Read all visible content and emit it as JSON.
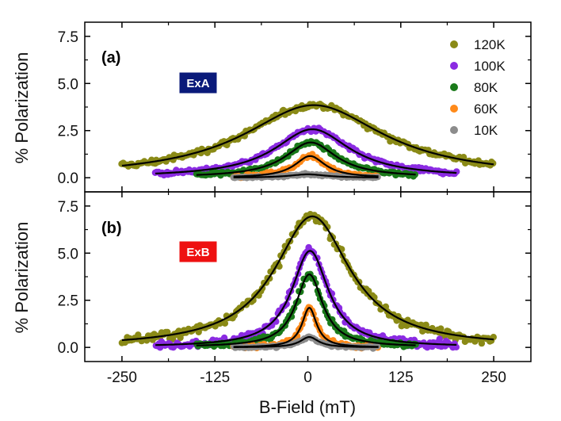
{
  "chart_data": {
    "type": "scatter",
    "xlabel": "B-Field (mT)",
    "ylabel": "% Polarization",
    "xlim": [
      -300,
      300
    ],
    "ylim": [
      -0.75,
      8.25
    ],
    "xticks": [
      -250,
      -125,
      0,
      125,
      250
    ],
    "xtick_labels": [
      "-250",
      "-125",
      "0",
      "125",
      "250"
    ],
    "yticks": [
      0,
      2.5,
      5,
      7.5
    ],
    "ytick_labels": [
      "0.0",
      "2.5",
      "5.0",
      "7.5"
    ],
    "legend": [
      {
        "label": "120K",
        "color": "#8a8a16"
      },
      {
        "label": "100K",
        "color": "#8b2be2"
      },
      {
        "label": "80K",
        "color": "#1a7a1a"
      },
      {
        "label": "60K",
        "color": "#ff8a1a"
      },
      {
        "label": "10K",
        "color": "#8c8c8c"
      }
    ],
    "fit_color": "#000000",
    "panels": [
      {
        "label": "(a)",
        "badge": {
          "text": "ExA",
          "color": "#0a1a7a"
        },
        "series": [
          {
            "name": "120K",
            "color": "#8a8a16",
            "amplitude": 3.85,
            "center": 8,
            "hwhm": 115,
            "baseline": 0.0,
            "x_range": [
              -250,
              250
            ]
          },
          {
            "name": "100K",
            "color": "#8b2be2",
            "amplitude": 2.55,
            "center": 6,
            "hwhm": 62,
            "baseline": 0.02,
            "x_range": [
              -205,
              200
            ]
          },
          {
            "name": "80K",
            "color": "#1a7a1a",
            "amplitude": 1.85,
            "center": 4,
            "hwhm": 42,
            "baseline": 0.02,
            "x_range": [
              -150,
              145
            ]
          },
          {
            "name": "60K",
            "color": "#ff8a1a",
            "amplitude": 1.15,
            "center": 3,
            "hwhm": 25,
            "baseline": 0.0,
            "x_range": [
              -100,
              95
            ]
          },
          {
            "name": "10K",
            "color": "#8c8c8c",
            "amplitude": 0.18,
            "center": 0,
            "hwhm": 30,
            "baseline": 0.0,
            "x_range": [
              -100,
              95
            ]
          }
        ]
      },
      {
        "label": "(b)",
        "badge": {
          "text": "ExB",
          "color": "#ee1111"
        },
        "series": [
          {
            "name": "120K",
            "color": "#8a8a16",
            "amplitude": 6.95,
            "center": 6,
            "hwhm": 62,
            "baseline": 0.0,
            "x_range": [
              -250,
              250
            ]
          },
          {
            "name": "100K",
            "color": "#8b2be2",
            "amplitude": 5.1,
            "center": 3,
            "hwhm": 30,
            "baseline": 0.02,
            "x_range": [
              -205,
              200
            ]
          },
          {
            "name": "80K",
            "color": "#1a7a1a",
            "amplitude": 3.85,
            "center": 2,
            "hwhm": 22,
            "baseline": 0.02,
            "x_range": [
              -150,
              145
            ]
          },
          {
            "name": "60K",
            "color": "#ff8a1a",
            "amplitude": 2.1,
            "center": 2,
            "hwhm": 12,
            "baseline": 0.0,
            "x_range": [
              -100,
              95
            ]
          },
          {
            "name": "10K",
            "color": "#8c8c8c",
            "amplitude": 0.55,
            "center": 2,
            "hwhm": 15,
            "baseline": 0.0,
            "x_range": [
              -100,
              95
            ]
          }
        ]
      }
    ]
  }
}
